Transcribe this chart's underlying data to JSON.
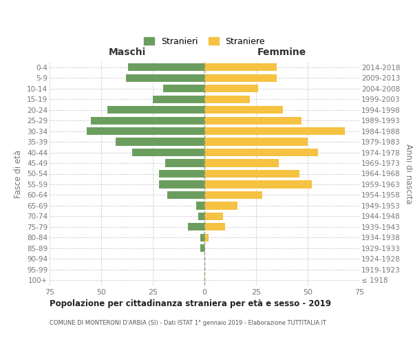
{
  "age_groups": [
    "100+",
    "95-99",
    "90-94",
    "85-89",
    "80-84",
    "75-79",
    "70-74",
    "65-69",
    "60-64",
    "55-59",
    "50-54",
    "45-49",
    "40-44",
    "35-39",
    "30-34",
    "25-29",
    "20-24",
    "15-19",
    "10-14",
    "5-9",
    "0-4"
  ],
  "birth_years": [
    "≤ 1918",
    "1919-1923",
    "1924-1928",
    "1929-1933",
    "1934-1938",
    "1939-1943",
    "1944-1948",
    "1949-1953",
    "1954-1958",
    "1959-1963",
    "1964-1968",
    "1969-1973",
    "1974-1978",
    "1979-1983",
    "1984-1988",
    "1989-1993",
    "1994-1998",
    "1999-2003",
    "2004-2008",
    "2009-2013",
    "2014-2018"
  ],
  "maschi": [
    0,
    0,
    0,
    2,
    2,
    8,
    3,
    4,
    18,
    22,
    22,
    19,
    35,
    43,
    57,
    55,
    47,
    25,
    20,
    38,
    37
  ],
  "femmine": [
    0,
    0,
    0,
    0,
    2,
    10,
    9,
    16,
    28,
    52,
    46,
    36,
    55,
    50,
    68,
    47,
    38,
    22,
    26,
    35,
    35
  ],
  "male_color": "#6b9e5e",
  "female_color": "#f5c242",
  "background_color": "#ffffff",
  "grid_color": "#cccccc",
  "center_line_color": "#aaaaaa",
  "title": "Popolazione per cittadinanza straniera per età e sesso - 2019",
  "subtitle": "COMUNE DI MONTERONI D'ARBIA (SI) - Dati ISTAT 1° gennaio 2019 - Elaborazione TUTTITALIA.IT",
  "xlabel_left": "Maschi",
  "xlabel_right": "Femmine",
  "ylabel_left": "Fasce di età",
  "ylabel_right": "Anni di nascita",
  "legend_male": "Stranieri",
  "legend_female": "Straniere",
  "xlim": 75,
  "tick_color": "#777777",
  "label_color": "#333333",
  "title_color": "#222222",
  "subtitle_color": "#555555"
}
